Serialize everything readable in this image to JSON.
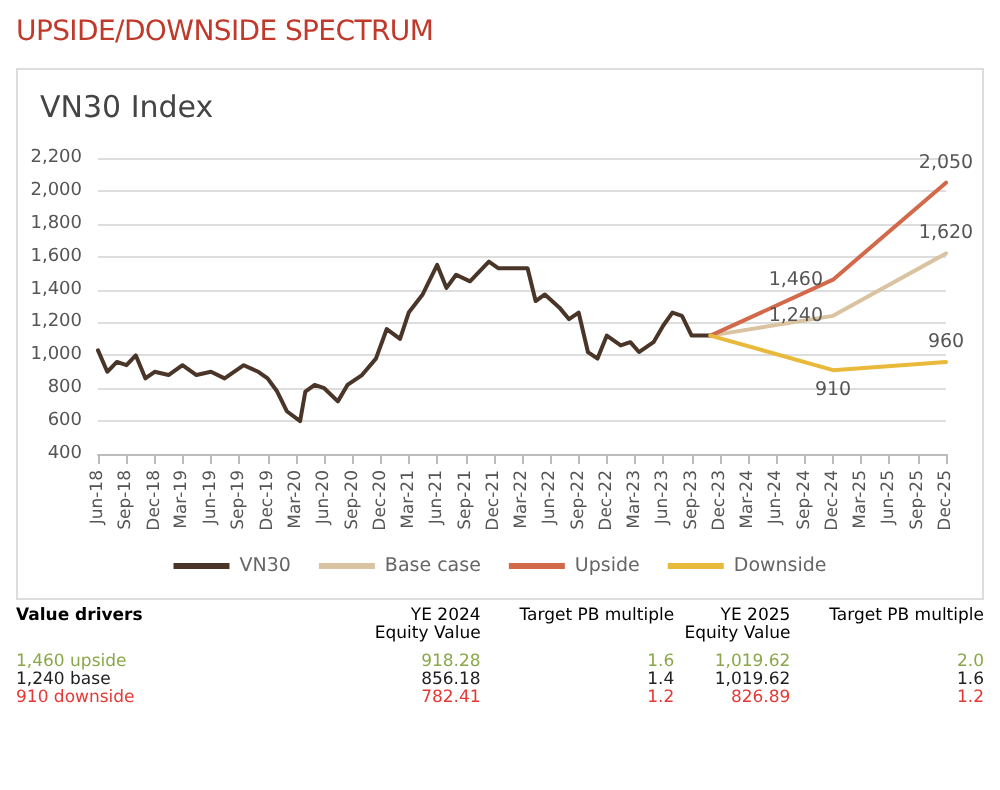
{
  "chart_data": {
    "type": "line",
    "title": "UPSIDE/DOWNSIDE SPECTRUM",
    "subtitle": "VN30 Index",
    "xlim": [
      "2018-06",
      "2025-12"
    ],
    "xticks": [
      {
        "value": "2018-06",
        "label": "Jun-18"
      },
      {
        "value": "2018-09",
        "label": "Sep-18"
      },
      {
        "value": "2018-12",
        "label": "Dec-18"
      },
      {
        "value": "2019-03",
        "label": "Mar-19"
      },
      {
        "value": "2019-06",
        "label": "Jun-19"
      },
      {
        "value": "2019-09",
        "label": "Sep-19"
      },
      {
        "value": "2019-12",
        "label": "Dec-19"
      },
      {
        "value": "2020-03",
        "label": "Mar-20"
      },
      {
        "value": "2020-06",
        "label": "Jun-20"
      },
      {
        "value": "2020-09",
        "label": "Sep-20"
      },
      {
        "value": "2020-12",
        "label": "Dec-20"
      },
      {
        "value": "2021-03",
        "label": "Mar-21"
      },
      {
        "value": "2021-06",
        "label": "Jun-21"
      },
      {
        "value": "2021-09",
        "label": "Sep-21"
      },
      {
        "value": "2021-12",
        "label": "Dec-21"
      },
      {
        "value": "2022-03",
        "label": "Mar-22"
      },
      {
        "value": "2022-06",
        "label": "Jun-22"
      },
      {
        "value": "2022-09",
        "label": "Sep-22"
      },
      {
        "value": "2022-12",
        "label": "Dec-22"
      },
      {
        "value": "2023-03",
        "label": "Mar-23"
      },
      {
        "value": "2023-06",
        "label": "Jun-23"
      },
      {
        "value": "2023-09",
        "label": "Sep-23"
      },
      {
        "value": "2023-12",
        "label": "Dec-23"
      },
      {
        "value": "2024-03",
        "label": "Mar-24"
      },
      {
        "value": "2024-06",
        "label": "Jun-24"
      },
      {
        "value": "2024-09",
        "label": "Sep-24"
      },
      {
        "value": "2024-12",
        "label": "Dec-24"
      },
      {
        "value": "2025-03",
        "label": "Mar-25"
      },
      {
        "value": "2025-06",
        "label": "Jun-25"
      },
      {
        "value": "2025-09",
        "label": "Sep-25"
      },
      {
        "value": "2025-12",
        "label": "Dec-25"
      }
    ],
    "ylim": [
      400,
      2200
    ],
    "yticks": [
      400,
      600,
      800,
      {
        "value": 1000,
        "label": "1,000"
      },
      {
        "value": 1200,
        "label": "1,200"
      },
      {
        "value": 1400,
        "label": "1,400"
      },
      {
        "value": 1600,
        "label": "1,600"
      },
      {
        "value": 1800,
        "label": "1,800"
      },
      {
        "value": 2000,
        "label": "2,000"
      },
      {
        "value": 2200,
        "label": "2,200"
      }
    ],
    "grid": "y",
    "legend": "bottom",
    "marker": "none",
    "line_style": "solid",
    "series": [
      {
        "name": "VN30",
        "color": "#4a3628",
        "x": [
          "2018-06",
          "2018-07",
          "2018-08",
          "2018-09",
          "2018-10",
          "2018-11",
          "2018-12",
          "2019-01-15",
          "2019-03",
          "2019-04-15",
          "2019-06",
          "2019-07-15",
          "2019-09-15",
          "2019-11",
          "2019-12",
          "2020-01",
          "2020-02",
          "2020-03-15",
          "2020-04",
          "2020-05",
          "2020-06",
          "2020-07-15",
          "2020-08-15",
          "2020-10",
          "2020-11-15",
          "2020-12-20",
          "2021-02",
          "2021-03",
          "2021-04-15",
          "2021-06",
          "2021-07",
          "2021-08",
          "2021-09-15",
          "2021-11-15",
          "2021-12-15",
          "2022-03-20",
          "2022-04-15",
          "2022-05-15",
          "2022-07",
          "2022-08",
          "2022-09",
          "2022-10",
          "2022-11",
          "2022-12",
          "2023-01-15",
          "2023-02-15",
          "2023-03-15",
          "2023-05",
          "2023-06",
          "2023-07",
          "2023-08",
          "2023-09",
          "2023-11"
        ],
        "values": [
          1030,
          900,
          960,
          940,
          1000,
          860,
          900,
          880,
          940,
          880,
          900,
          860,
          940,
          900,
          860,
          780,
          660,
          600,
          780,
          820,
          800,
          720,
          820,
          880,
          980,
          1160,
          1100,
          1260,
          1370,
          1550,
          1410,
          1490,
          1450,
          1570,
          1530,
          1530,
          1330,
          1370,
          1290,
          1220,
          1260,
          1020,
          980,
          1120,
          1060,
          1080,
          1020,
          1080,
          1180,
          1260,
          1240,
          1120,
          1120
        ]
      },
      {
        "name": "Base case",
        "color": "#d9c3a0",
        "x": [
          "2023-11",
          "2024-12",
          "2025-12"
        ],
        "values": [
          1120,
          1240,
          1620
        ],
        "value_labels": [
          null,
          "1,240",
          "1,620"
        ]
      },
      {
        "name": "Upside",
        "color": "#d2694a",
        "x": [
          "2023-11",
          "2024-12",
          "2025-12"
        ],
        "values": [
          1120,
          1460,
          2050
        ],
        "value_labels": [
          null,
          "1,460",
          "2,050"
        ]
      },
      {
        "name": "Downside",
        "color": "#e8b93a",
        "x": [
          "2023-11",
          "2024-12",
          "2025-12"
        ],
        "values": [
          1120,
          910,
          960
        ],
        "value_labels": [
          null,
          "910",
          "960"
        ]
      }
    ],
    "annotations": [
      "Value drivers",
      "YE 2024 Equity Value",
      "Target PB multiple",
      "YE 2025 Equity Value",
      "Target PB multiple",
      "1,460 upside",
      "918.28",
      "1.6",
      "1,019.62",
      "2.0",
      "1,240 base",
      "856.18",
      "1.4",
      "1,019.62",
      "1.6",
      "910 downside",
      "782.41",
      "1.2",
      "826.89",
      "1.2"
    ]
  }
}
